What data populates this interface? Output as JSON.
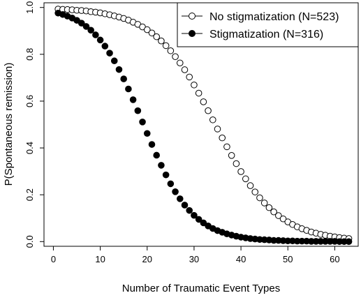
{
  "chart_data": {
    "type": "scatter",
    "xlabel": "Number of Traumatic Event Types",
    "ylabel": "P(Spontaneous remission)",
    "xlim": [
      -2,
      65
    ],
    "ylim": [
      -0.02,
      1.02
    ],
    "xticks": [
      0,
      10,
      20,
      30,
      40,
      50,
      60
    ],
    "yticks": [
      0.0,
      0.2,
      0.4,
      0.6,
      0.8,
      1.0
    ],
    "xtick_labels": [
      "0",
      "10",
      "20",
      "30",
      "40",
      "50",
      "60"
    ],
    "ytick_labels": [
      "0.0",
      "0.2",
      "0.4",
      "0.6",
      "0.8",
      "1.0"
    ],
    "grid": false,
    "legend_position": "top-right",
    "series": [
      {
        "name": "No stigmatization (N=523)",
        "marker": "open-circle",
        "color": "#000000",
        "x": [
          1,
          2,
          3,
          4,
          5,
          6,
          7,
          8,
          9,
          10,
          11,
          12,
          13,
          14,
          15,
          16,
          17,
          18,
          19,
          20,
          21,
          22,
          23,
          24,
          25,
          26,
          27,
          28,
          29,
          30,
          31,
          32,
          33,
          34,
          35,
          36,
          37,
          38,
          39,
          40,
          41,
          42,
          43,
          44,
          45,
          46,
          47,
          48,
          49,
          50,
          51,
          52,
          53,
          54,
          55,
          56,
          57,
          58,
          59,
          60,
          61,
          62,
          63
        ],
        "y": [
          0.993,
          0.992,
          0.991,
          0.99,
          0.988,
          0.987,
          0.985,
          0.982,
          0.98,
          0.977,
          0.973,
          0.969,
          0.964,
          0.959,
          0.953,
          0.946,
          0.937,
          0.928,
          0.917,
          0.905,
          0.891,
          0.875,
          0.857,
          0.837,
          0.815,
          0.79,
          0.763,
          0.734,
          0.703,
          0.669,
          0.634,
          0.597,
          0.559,
          0.52,
          0.481,
          0.443,
          0.405,
          0.368,
          0.333,
          0.299,
          0.268,
          0.239,
          0.212,
          0.187,
          0.165,
          0.145,
          0.127,
          0.111,
          0.097,
          0.084,
          0.073,
          0.063,
          0.055,
          0.048,
          0.041,
          0.036,
          0.031,
          0.027,
          0.023,
          0.02,
          0.017,
          0.015,
          0.013
        ]
      },
      {
        "name": "Stigmatization (N=316)",
        "marker": "filled-circle",
        "color": "#000000",
        "x": [
          1,
          2,
          3,
          4,
          5,
          6,
          7,
          8,
          9,
          10,
          11,
          12,
          13,
          14,
          15,
          16,
          17,
          18,
          19,
          20,
          21,
          22,
          23,
          24,
          25,
          26,
          27,
          28,
          29,
          30,
          31,
          32,
          33,
          34,
          35,
          36,
          37,
          38,
          39,
          40,
          41,
          42,
          43,
          44,
          45,
          46,
          47,
          48,
          49,
          50,
          51,
          52,
          53,
          54,
          55,
          56,
          57,
          58,
          59,
          60,
          61,
          62,
          63
        ],
        "y": [
          0.976,
          0.97,
          0.963,
          0.955,
          0.945,
          0.933,
          0.919,
          0.903,
          0.883,
          0.861,
          0.835,
          0.805,
          0.772,
          0.735,
          0.695,
          0.652,
          0.606,
          0.559,
          0.511,
          0.462,
          0.415,
          0.369,
          0.326,
          0.285,
          0.247,
          0.213,
          0.183,
          0.156,
          0.133,
          0.112,
          0.095,
          0.08,
          0.067,
          0.056,
          0.047,
          0.04,
          0.033,
          0.028,
          0.023,
          0.019,
          0.016,
          0.013,
          0.011,
          0.009,
          0.008,
          0.007,
          0.005,
          0.005,
          0.004,
          0.003,
          0.003,
          0.002,
          0.002,
          0.002,
          0.001,
          0.001,
          0.001,
          0.001,
          0.001,
          0.001,
          0.0,
          0.0,
          0.0
        ]
      }
    ]
  }
}
